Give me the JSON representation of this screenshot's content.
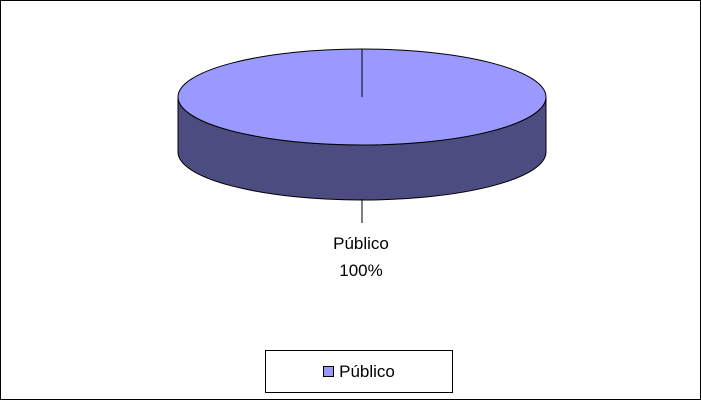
{
  "chart_data": {
    "type": "pie",
    "style": "3d",
    "slices": [
      {
        "label": "Público",
        "value": 100,
        "percent_label": "100%",
        "color": "#9999ff",
        "side_color": "#4c4c80"
      }
    ],
    "legend": {
      "placement": "bottom",
      "items": [
        "Público"
      ]
    }
  }
}
